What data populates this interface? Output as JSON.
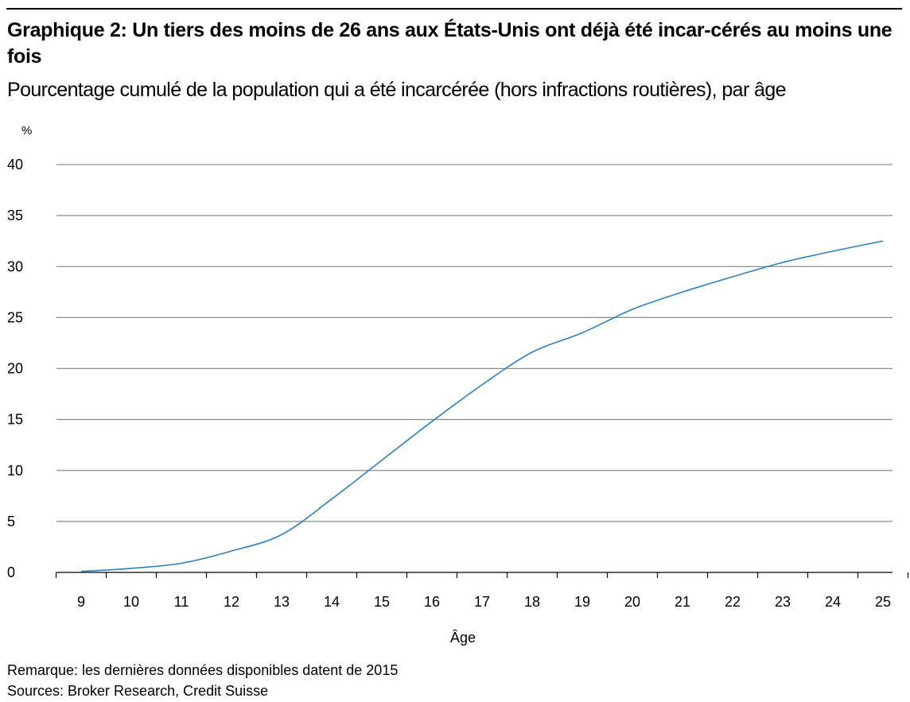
{
  "header": {
    "title": "Graphique 2: Un tiers des moins de 26 ans aux États-Unis ont déjà été incar-cérés au moins une fois",
    "subtitle": "Pourcentage cumulé de la population qui a été incarcérée (hors infractions routières), par âge"
  },
  "chart_data": {
    "type": "line",
    "title": "Graphique 2: Un tiers des moins de 26 ans aux États-Unis ont déjà été incar-cérés au moins une fois",
    "subtitle": "Pourcentage cumulé de la population qui a été incarcérée (hors infractions routières), par âge",
    "xlabel": "Âge",
    "ylabel": "%",
    "x": [
      9,
      10,
      11,
      12,
      13,
      14,
      15,
      16,
      17,
      18,
      19,
      20,
      21,
      22,
      23,
      24,
      25
    ],
    "x_tick_labels": [
      "9",
      "10",
      "11",
      "12",
      "13",
      "14",
      "15",
      "16",
      "17",
      "18",
      "19",
      "20",
      "21",
      "22",
      "23",
      "24",
      "25"
    ],
    "y_ticks": [
      0,
      5,
      10,
      15,
      20,
      25,
      30,
      35,
      40
    ],
    "y_tick_labels": [
      "0",
      "5",
      "10",
      "15",
      "20",
      "25",
      "30",
      "35",
      "40"
    ],
    "ylim": [
      0,
      40
    ],
    "grid": "horizontal",
    "series": [
      {
        "values": [
          0.1,
          0.4,
          0.9,
          2.1,
          3.7,
          7.2,
          11.0,
          14.8,
          18.4,
          21.6,
          23.5,
          25.8,
          27.5,
          29.0,
          30.4,
          31.5,
          32.5
        ],
        "color": "#2f7fb8"
      }
    ]
  },
  "footer": {
    "note": "Remarque: les dernières données disponibles datent de 2015",
    "sources": "Sources: Broker Research, Credit Suisse"
  }
}
